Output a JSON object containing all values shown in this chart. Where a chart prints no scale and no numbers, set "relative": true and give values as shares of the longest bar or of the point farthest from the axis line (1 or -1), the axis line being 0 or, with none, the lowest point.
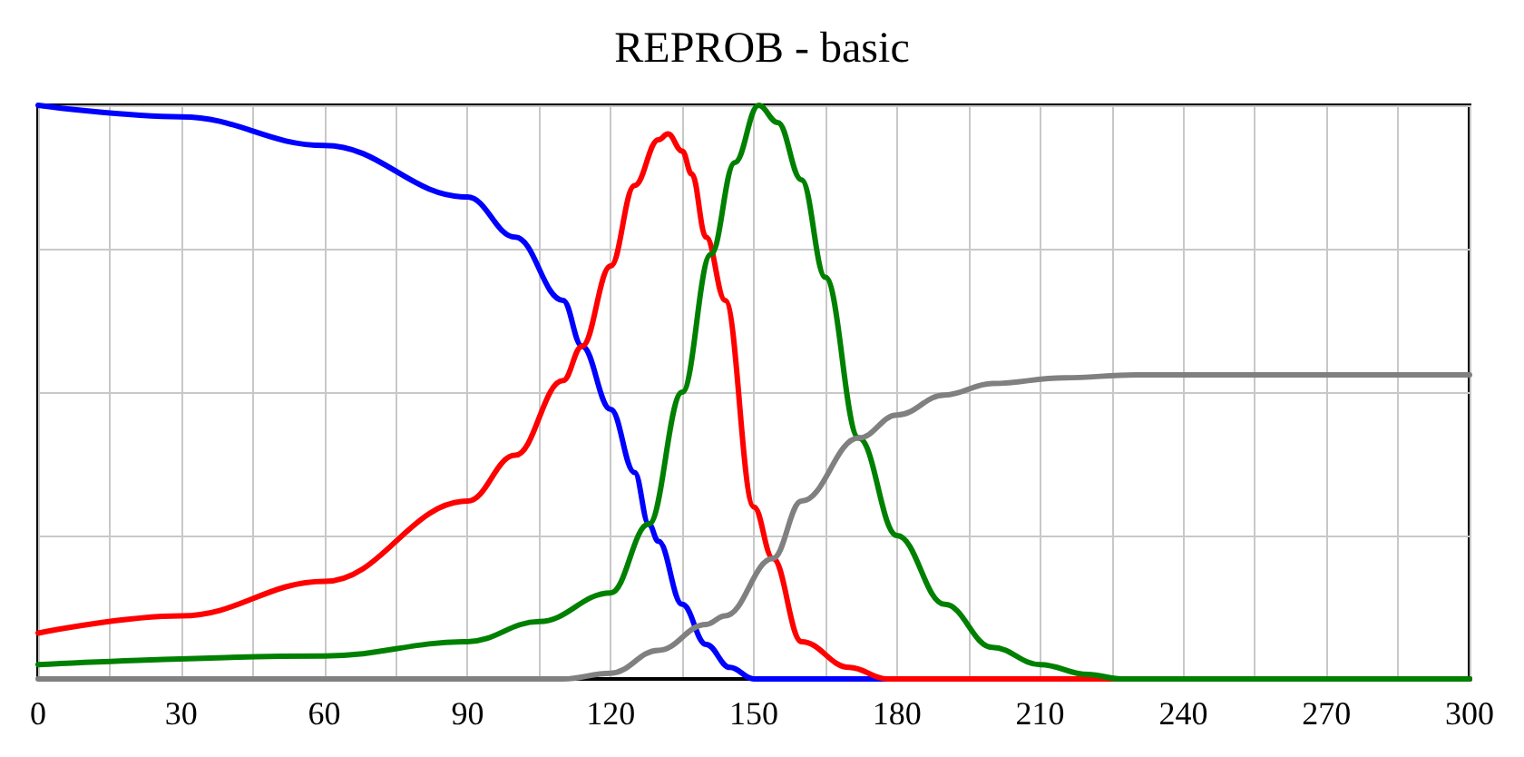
{
  "chart_data": {
    "type": "line",
    "title": "REPROB - basic",
    "relative": true,
    "grid": true,
    "marker": "none",
    "line_style": "solid",
    "xlim": [
      0,
      300
    ],
    "xticks": [
      0,
      30,
      60,
      90,
      120,
      150,
      180,
      210,
      240,
      270,
      300
    ],
    "series": [
      {
        "color": "#0000ff",
        "x": [
          0,
          30,
          60,
          90,
          100,
          110,
          114,
          120,
          125,
          128,
          130,
          135,
          140,
          145,
          150,
          160,
          300
        ],
        "values": [
          1.0,
          0.98,
          0.93,
          0.84,
          0.77,
          0.66,
          0.58,
          0.47,
          0.36,
          0.27,
          0.24,
          0.13,
          0.06,
          0.02,
          0,
          0,
          0
        ]
      },
      {
        "color": "#ff0000",
        "x": [
          0,
          30,
          60,
          90,
          100,
          110,
          114,
          120,
          125,
          130,
          132,
          135,
          137,
          140,
          144,
          150,
          154,
          160,
          170,
          178,
          300
        ],
        "values": [
          0.08,
          0.11,
          0.17,
          0.31,
          0.39,
          0.52,
          0.58,
          0.72,
          0.86,
          0.94,
          0.95,
          0.92,
          0.88,
          0.77,
          0.66,
          0.3,
          0.21,
          0.065,
          0.02,
          0,
          0
        ]
      },
      {
        "color": "#008000",
        "x": [
          0,
          60,
          90,
          105,
          120,
          128,
          135,
          141,
          146,
          151,
          155,
          160,
          165,
          172,
          180,
          190,
          200,
          210,
          220,
          227,
          300
        ],
        "values": [
          0.025,
          0.04,
          0.065,
          0.1,
          0.15,
          0.27,
          0.5,
          0.74,
          0.9,
          1.0,
          0.97,
          0.87,
          0.7,
          0.42,
          0.25,
          0.13,
          0.055,
          0.025,
          0.008,
          0,
          0
        ]
      },
      {
        "color": "#808080",
        "x": [
          0,
          110,
          120,
          130,
          140,
          144,
          154,
          160,
          172,
          180,
          190,
          200,
          215,
          230,
          300
        ],
        "values": [
          0,
          0,
          0.01,
          0.05,
          0.095,
          0.11,
          0.21,
          0.31,
          0.42,
          0.46,
          0.495,
          0.515,
          0.525,
          0.53,
          0.53
        ]
      }
    ]
  }
}
